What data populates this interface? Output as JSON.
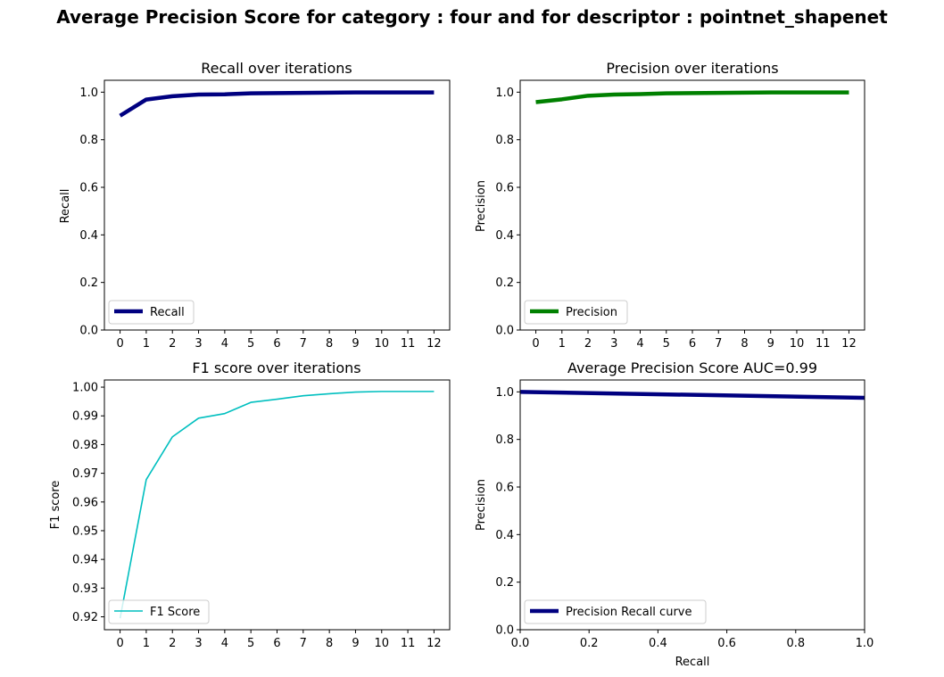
{
  "figure": {
    "suptitle": "Average Precision Score for category : four and for descriptor : pointnet_shapenet"
  },
  "chart_data": [
    {
      "id": "recall",
      "type": "line",
      "title": "Recall over iterations",
      "xlabel": "",
      "ylabel": "Recall",
      "x": [
        0,
        1,
        2,
        3,
        4,
        5,
        6,
        7,
        8,
        9,
        10,
        11,
        12
      ],
      "series": [
        {
          "name": "Recall",
          "color": "#000080",
          "line_width": "thick",
          "values": [
            0.901,
            0.969,
            0.983,
            0.99,
            0.991,
            0.995,
            0.996,
            0.997,
            0.998,
            0.999,
            0.999,
            0.999,
            0.999
          ]
        }
      ],
      "xlim": [
        -0.6,
        12.6
      ],
      "ylim": [
        0.0,
        1.05
      ],
      "xticks": [
        0,
        1,
        2,
        3,
        4,
        5,
        6,
        7,
        8,
        9,
        10,
        11,
        12
      ],
      "xtick_labels": [
        "0",
        "1",
        "2",
        "3",
        "4",
        "5",
        "6",
        "7",
        "8",
        "9",
        "10",
        "11",
        "12"
      ],
      "yticks": [
        0.0,
        0.2,
        0.4,
        0.6,
        0.8,
        1.0
      ],
      "ytick_labels": [
        "0.0",
        "0.2",
        "0.4",
        "0.6",
        "0.8",
        "1.0"
      ],
      "legend_loc": "lower-left"
    },
    {
      "id": "precision",
      "type": "line",
      "title": "Precision over iterations",
      "xlabel": "",
      "ylabel": "Precision",
      "x": [
        0,
        1,
        2,
        3,
        4,
        5,
        6,
        7,
        8,
        9,
        10,
        11,
        12
      ],
      "series": [
        {
          "name": "Precision",
          "color": "#008000",
          "line_width": "thick",
          "values": [
            0.958,
            0.97,
            0.985,
            0.99,
            0.992,
            0.995,
            0.996,
            0.997,
            0.998,
            0.999,
            0.999,
            0.999,
            0.999
          ]
        }
      ],
      "xlim": [
        -0.6,
        12.6
      ],
      "ylim": [
        0.0,
        1.05
      ],
      "xticks": [
        0,
        1,
        2,
        3,
        4,
        5,
        6,
        7,
        8,
        9,
        10,
        11,
        12
      ],
      "xtick_labels": [
        "0",
        "1",
        "2",
        "3",
        "4",
        "5",
        "6",
        "7",
        "8",
        "9",
        "10",
        "11",
        "12"
      ],
      "yticks": [
        0.0,
        0.2,
        0.4,
        0.6,
        0.8,
        1.0
      ],
      "ytick_labels": [
        "0.0",
        "0.2",
        "0.4",
        "0.6",
        "0.8",
        "1.0"
      ],
      "legend_loc": "lower-left"
    },
    {
      "id": "f1",
      "type": "line",
      "title": "F1 score over iterations",
      "xlabel": "",
      "ylabel": "F1 score",
      "x": [
        0,
        1,
        2,
        3,
        4,
        5,
        6,
        7,
        8,
        9,
        10,
        11,
        12
      ],
      "series": [
        {
          "name": "F1 Score",
          "color": "#00bfbf",
          "line_width": "thin",
          "values": [
            0.9195,
            0.9678,
            0.9827,
            0.9892,
            0.9908,
            0.9947,
            0.9958,
            0.997,
            0.9977,
            0.9983,
            0.9985,
            0.9985,
            0.9985
          ]
        }
      ],
      "xlim": [
        -0.6,
        12.6
      ],
      "ylim": [
        0.9155,
        1.0025
      ],
      "xticks": [
        0,
        1,
        2,
        3,
        4,
        5,
        6,
        7,
        8,
        9,
        10,
        11,
        12
      ],
      "xtick_labels": [
        "0",
        "1",
        "2",
        "3",
        "4",
        "5",
        "6",
        "7",
        "8",
        "9",
        "10",
        "11",
        "12"
      ],
      "yticks": [
        0.92,
        0.93,
        0.94,
        0.95,
        0.96,
        0.97,
        0.98,
        0.99,
        1.0
      ],
      "ytick_labels": [
        "0.92",
        "0.93",
        "0.94",
        "0.95",
        "0.96",
        "0.97",
        "0.98",
        "0.99",
        "1.00"
      ],
      "legend_loc": "lower-left"
    },
    {
      "id": "pr",
      "type": "line",
      "title": "Average Precision Score AUC=0.99",
      "xlabel": "Recall",
      "ylabel": "Precision",
      "x": [
        0.0,
        1.0
      ],
      "series": [
        {
          "name": "Precision Recall curve",
          "color": "#000080",
          "line_width": "thick",
          "values": [
            1.0,
            0.975
          ]
        }
      ],
      "xlim": [
        0.0,
        1.0
      ],
      "ylim": [
        0.0,
        1.05
      ],
      "xticks": [
        0.0,
        0.2,
        0.4,
        0.6,
        0.8,
        1.0
      ],
      "xtick_labels": [
        "0.0",
        "0.2",
        "0.4",
        "0.6",
        "0.8",
        "1.0"
      ],
      "yticks": [
        0.0,
        0.2,
        0.4,
        0.6,
        0.8,
        1.0
      ],
      "ytick_labels": [
        "0.0",
        "0.2",
        "0.4",
        "0.6",
        "0.8",
        "1.0"
      ],
      "legend_loc": "lower-left"
    }
  ]
}
